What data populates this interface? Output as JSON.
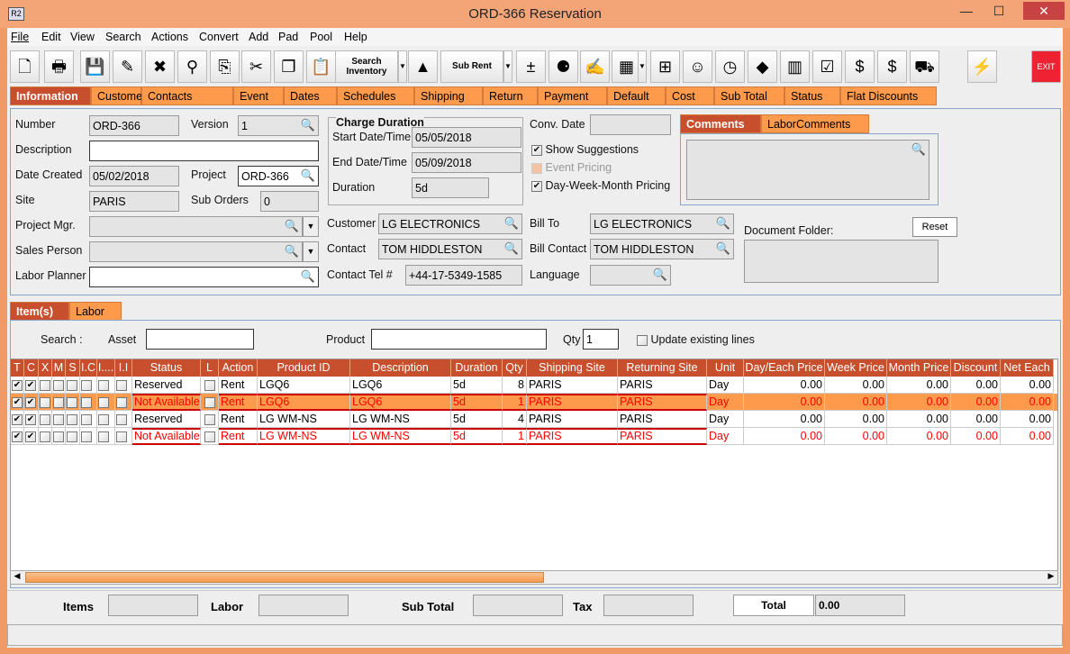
{
  "window": {
    "title": "ORD-366 Reservation",
    "icon": "R2",
    "minimize": "—",
    "maximize": "☐",
    "close": "✕"
  },
  "menu": [
    "File",
    "Edit",
    "View",
    "Search",
    "Actions",
    "Convert",
    "Add",
    "Pad",
    "Pool",
    "Help"
  ],
  "toolbar": {
    "search_inventory": "Search Inventory",
    "sub_rent": "Sub Rent",
    "exit": "EXIT",
    "icons": [
      "new-document-icon",
      "print-icon",
      "save-icon",
      "edit-pencil-icon",
      "delete-icon",
      "binoculars-icon",
      "copy-order-icon",
      "cut-icon",
      "copy-icon",
      "paste-icon",
      "search-inventory-icon",
      "dropdown-icon",
      "shapes-icon",
      "sub-rent-icon",
      "dropdown-icon",
      "add-remove-icon",
      "balls-icon",
      "notepad-icon",
      "calendar-icon",
      "dropdown-icon",
      "hierarchy-icon",
      "smiley-icon",
      "notes-clock-icon",
      "stamp-icon",
      "cubes-icon",
      "checklist-icon",
      "dollar-arrow-icon",
      "money-icon",
      "truck-icon",
      "lightning-icon",
      "exit-icon"
    ]
  },
  "tabs": [
    "Information",
    "Customer",
    "Contacts",
    "Event",
    "Dates",
    "Schedules",
    "Shipping",
    "Return",
    "Payment",
    "Default",
    "Cost",
    "Sub Total",
    "Status",
    "Flat Discounts"
  ],
  "info": {
    "number_label": "Number",
    "number": "ORD-366",
    "version_label": "Version",
    "version": "1",
    "description_label": "Description",
    "description": "",
    "date_created_label": "Date Created",
    "date_created": "05/02/2018",
    "project_label": "Project",
    "project": "ORD-366",
    "site_label": "Site",
    "site": "PARIS",
    "sub_orders_label": "Sub Orders",
    "sub_orders": "0",
    "project_mgr_label": "Project Mgr.",
    "project_mgr": "",
    "sales_person_label": "Sales Person",
    "sales_person": "",
    "labor_planner_label": "Labor Planner",
    "labor_planner": "",
    "charge_duration_label": "Charge Duration",
    "start_label": "Start Date/Time",
    "start": "05/05/2018",
    "end_label": "End Date/Time",
    "end": "05/09/2018",
    "duration_label": "Duration",
    "duration": "5d",
    "conv_date_label": "Conv. Date",
    "conv_date": "",
    "show_suggestions": "Show Suggestions",
    "event_pricing": "Event Pricing",
    "dwm_pricing": "Day-Week-Month Pricing",
    "customer_label": "Customer",
    "customer": "LG ELECTRONICS",
    "contact_label": "Contact",
    "contact": "TOM HIDDLESTON",
    "tel_label": "Contact Tel #",
    "tel": "+44-17-5349-1585",
    "bill_to_label": "Bill To",
    "bill_to": "LG ELECTRONICS",
    "bill_contact_label": "Bill Contact",
    "bill_contact": "TOM HIDDLESTON",
    "language_label": "Language",
    "language": "",
    "comments_tabs": [
      "Comments",
      "LaborComments"
    ],
    "document_folder_label": "Document Folder:",
    "reset": "Reset"
  },
  "items": {
    "tabs": [
      "Item(s)",
      "Labor"
    ],
    "search_label": "Search :",
    "asset_label": "Asset",
    "asset": "",
    "product_label": "Product",
    "product": "",
    "qty_label": "Qty",
    "qty": "1",
    "update_existing": "Update existing lines",
    "columns": [
      "T",
      "C",
      "X",
      "M",
      "S",
      "I.C",
      "I....",
      "I.I",
      "Status",
      "L",
      "Action",
      "Product ID",
      "Description",
      "Duration",
      "Qty",
      "Shipping Site",
      "Returning Site",
      "Unit",
      "Day/Each Price",
      "Week Price",
      "Month Price",
      "Discount",
      "Net Each"
    ],
    "rows": [
      {
        "t": true,
        "c": true,
        "status": "Reserved",
        "action": "Rent",
        "product_id": "LGQ6",
        "description": "LGQ6",
        "duration": "5d",
        "qty": "8",
        "ship": "PARIS",
        "ret": "PARIS",
        "unit": "Day",
        "day": "0.00",
        "week": "0.00",
        "month": "0.00",
        "discount": "0.00",
        "net": "0.00",
        "unavailable": false
      },
      {
        "t": true,
        "c": true,
        "status": "Not Available",
        "action": "Rent",
        "product_id": "LGQ6",
        "description": "LGQ6",
        "duration": "5d",
        "qty": "1",
        "ship": "PARIS",
        "ret": "PARIS",
        "unit": "Day",
        "day": "0.00",
        "week": "0.00",
        "month": "0.00",
        "discount": "0.00",
        "net": "0.00",
        "unavailable": true,
        "selected": true
      },
      {
        "t": true,
        "c": true,
        "status": "Reserved",
        "action": "Rent",
        "product_id": "LG WM-NS",
        "description": "LG WM-NS",
        "duration": "5d",
        "qty": "4",
        "ship": "PARIS",
        "ret": "PARIS",
        "unit": "Day",
        "day": "0.00",
        "week": "0.00",
        "month": "0.00",
        "discount": "0.00",
        "net": "0.00",
        "unavailable": false
      },
      {
        "t": true,
        "c": true,
        "status": "Not Available",
        "action": "Rent",
        "product_id": "LG WM-NS",
        "description": "LG WM-NS",
        "duration": "5d",
        "qty": "1",
        "ship": "PARIS",
        "ret": "PARIS",
        "unit": "Day",
        "day": "0.00",
        "week": "0.00",
        "month": "0.00",
        "discount": "0.00",
        "net": "0.00",
        "unavailable": true
      }
    ]
  },
  "footer": {
    "items_label": "Items",
    "items": "",
    "labor_label": "Labor",
    "labor": "",
    "subtotal_label": "Sub Total",
    "subtotal": "",
    "tax_label": "Tax",
    "tax": "",
    "total_label": "Total",
    "total": "0.00"
  },
  "colors": {
    "accent": "#fd9a4c",
    "selected_tab": "#c84f2d",
    "frame": "#f09a68",
    "error_text": "#ff0000"
  }
}
